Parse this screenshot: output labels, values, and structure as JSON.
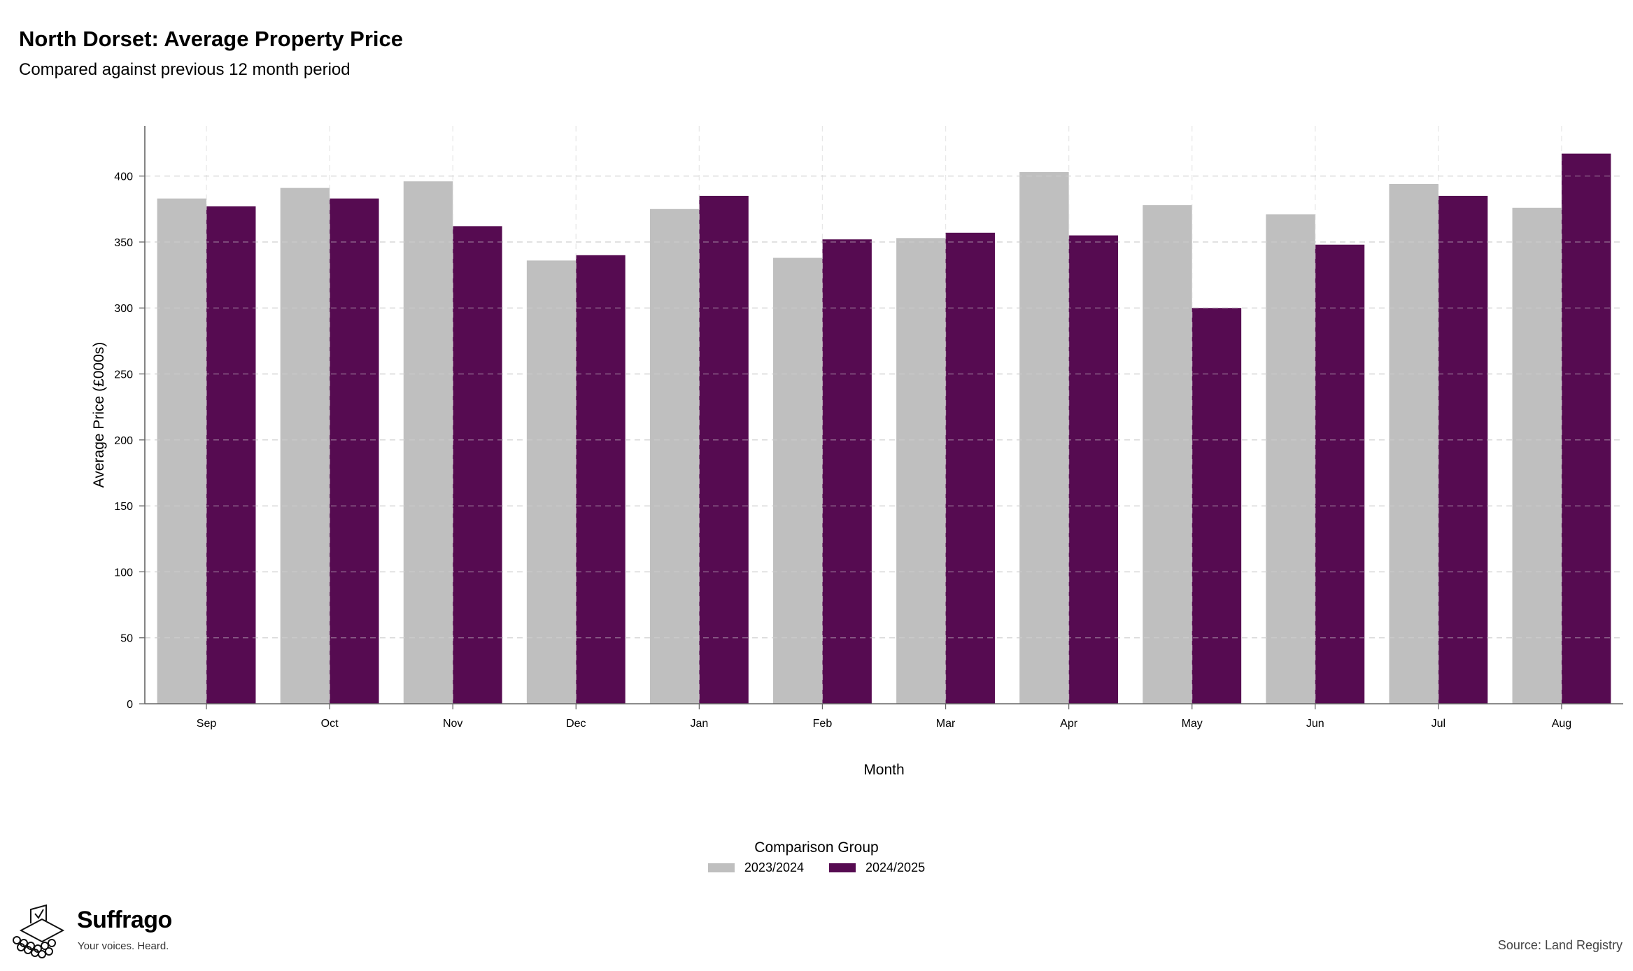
{
  "title": "North Dorset: Average Property Price",
  "subtitle": "Compared against previous 12 month period",
  "legend": {
    "title": "Comparison Group",
    "items": [
      {
        "label": "2023/2024",
        "color": "#bfbfbf"
      },
      {
        "label": "2024/2025",
        "color": "#560b51"
      }
    ]
  },
  "brand": {
    "name": "Suffrago",
    "tagline": "Your voices. Heard."
  },
  "source": "Source: Land Registry",
  "chart_data": {
    "type": "bar",
    "xlabel": "Month",
    "ylabel": "Average Price (£000s)",
    "ylim": [
      0,
      438
    ],
    "yticks": [
      0,
      50,
      100,
      150,
      200,
      250,
      300,
      350,
      400
    ],
    "grid": true,
    "legend_position": "bottom",
    "categories": [
      "Sep",
      "Oct",
      "Nov",
      "Dec",
      "Jan",
      "Feb",
      "Mar",
      "Apr",
      "May",
      "Jun",
      "Jul",
      "Aug"
    ],
    "series": [
      {
        "name": "2023/2024",
        "color": "#bfbfbf",
        "values": [
          383,
          391,
          396,
          336,
          375,
          338,
          353,
          403,
          378,
          371,
          394,
          376
        ]
      },
      {
        "name": "2024/2025",
        "color": "#560b51",
        "values": [
          377,
          383,
          362,
          340,
          385,
          352,
          357,
          355,
          300,
          348,
          385,
          417
        ]
      }
    ]
  }
}
